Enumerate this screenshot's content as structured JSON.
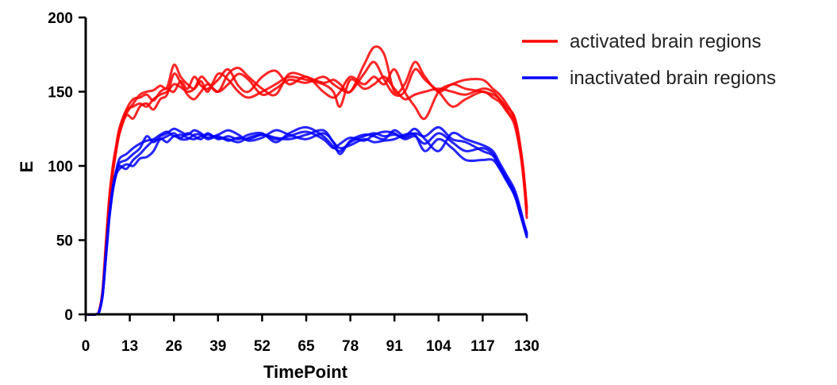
{
  "chart_data": {
    "type": "line",
    "xlabel": "TimePoint",
    "ylabel": "E",
    "xlim": [
      0,
      130
    ],
    "ylim": [
      0,
      200
    ],
    "xticks": [
      0,
      13,
      26,
      39,
      52,
      65,
      78,
      91,
      104,
      117,
      130
    ],
    "yticks": [
      0,
      50,
      100,
      150,
      200
    ],
    "grid": false,
    "legend_position": "top-right",
    "legend": [
      {
        "label": "activated brain regions",
        "color": "#ff0000"
      },
      {
        "label": "inactivated brain regions",
        "color": "#0000ff"
      }
    ],
    "x": [
      0,
      3,
      4,
      5,
      6,
      7,
      8,
      9,
      10,
      12,
      14,
      16,
      18,
      20,
      22,
      24,
      26,
      28,
      30,
      32,
      34,
      36,
      39,
      42,
      45,
      48,
      52,
      56,
      60,
      65,
      70,
      73,
      75,
      78,
      82,
      85,
      88,
      91,
      94,
      97,
      100,
      104,
      108,
      112,
      117,
      120,
      122,
      124,
      126,
      127,
      128,
      129,
      130
    ],
    "series": [
      {
        "color": "#ff0000",
        "values": [
          0,
          0,
          2,
          15,
          45,
          75,
          95,
          110,
          122,
          135,
          142,
          148,
          150,
          151,
          154,
          153,
          168,
          160,
          155,
          152,
          157,
          150,
          162,
          158,
          150,
          146,
          150,
          155,
          160,
          158,
          155,
          150,
          140,
          158,
          152,
          155,
          160,
          152,
          145,
          148,
          150,
          152,
          150,
          148,
          152,
          150,
          145,
          140,
          135,
          128,
          115,
          95,
          65
        ]
      },
      {
        "color": "#ff0000",
        "values": [
          0,
          0,
          2,
          16,
          48,
          78,
          98,
          112,
          124,
          137,
          140,
          142,
          140,
          145,
          148,
          150,
          155,
          153,
          150,
          152,
          160,
          156,
          150,
          162,
          166,
          160,
          152,
          148,
          162,
          160,
          156,
          158,
          155,
          150,
          168,
          180,
          175,
          150,
          155,
          170,
          160,
          150,
          155,
          152,
          150,
          148,
          145,
          138,
          132,
          126,
          112,
          96,
          70
        ]
      },
      {
        "color": "#ff0000",
        "values": [
          0,
          0,
          3,
          17,
          50,
          80,
          100,
          114,
          126,
          138,
          145,
          146,
          148,
          144,
          150,
          152,
          150,
          157,
          152,
          160,
          154,
          152,
          158,
          165,
          154,
          150,
          160,
          164,
          155,
          160,
          150,
          146,
          150,
          160,
          155,
          160,
          155,
          165,
          150,
          140,
          132,
          150,
          155,
          158,
          158,
          152,
          148,
          142,
          134,
          125,
          114,
          98,
          72
        ]
      },
      {
        "color": "#ff0000",
        "values": [
          0,
          0,
          2,
          15,
          46,
          76,
          96,
          111,
          123,
          134,
          132,
          140,
          142,
          138,
          145,
          148,
          162,
          156,
          148,
          145,
          150,
          155,
          150,
          155,
          162,
          158,
          148,
          152,
          158,
          156,
          160,
          155,
          152,
          150,
          162,
          170,
          158,
          148,
          150,
          165,
          158,
          150,
          140,
          145,
          150,
          146,
          143,
          137,
          130,
          122,
          110,
          92,
          68
        ]
      },
      {
        "color": "#0000ff",
        "values": [
          0,
          0,
          2,
          14,
          42,
          68,
          86,
          97,
          105,
          108,
          112,
          115,
          117,
          118,
          121,
          123,
          120,
          121,
          119,
          118,
          120,
          121,
          119,
          118,
          116,
          119,
          121,
          118,
          120,
          123,
          118,
          112,
          115,
          119,
          117,
          121,
          123,
          122,
          118,
          120,
          115,
          122,
          116,
          110,
          112,
          108,
          100,
          92,
          84,
          78,
          70,
          62,
          54
        ]
      },
      {
        "color": "#0000ff",
        "values": [
          0,
          0,
          2,
          13,
          40,
          66,
          84,
          95,
          102,
          104,
          108,
          112,
          120,
          116,
          120,
          122,
          125,
          123,
          121,
          124,
          122,
          119,
          121,
          124,
          121,
          117,
          119,
          124,
          121,
          118,
          122,
          116,
          108,
          117,
          121,
          120,
          118,
          124,
          120,
          125,
          118,
          110,
          122,
          118,
          114,
          110,
          102,
          94,
          86,
          80,
          72,
          63,
          55
        ]
      },
      {
        "color": "#0000ff",
        "values": [
          0,
          0,
          2,
          14,
          41,
          67,
          85,
          96,
          100,
          98,
          104,
          108,
          113,
          117,
          118,
          120,
          122,
          119,
          122,
          120,
          118,
          122,
          118,
          120,
          118,
          121,
          122,
          116,
          122,
          126,
          120,
          113,
          110,
          116,
          120,
          122,
          120,
          121,
          119,
          122,
          120,
          126,
          118,
          116,
          110,
          107,
          99,
          91,
          83,
          77,
          69,
          61,
          53
        ]
      },
      {
        "color": "#0000ff",
        "values": [
          0,
          0,
          2,
          13,
          39,
          65,
          83,
          94,
          98,
          101,
          100,
          105,
          106,
          110,
          118,
          116,
          120,
          118,
          118,
          121,
          121,
          118,
          120,
          117,
          119,
          118,
          121,
          119,
          118,
          121,
          124,
          116,
          112,
          114,
          118,
          116,
          117,
          118,
          121,
          121,
          110,
          118,
          112,
          104,
          104,
          104,
          98,
          90,
          82,
          76,
          68,
          60,
          52
        ]
      }
    ]
  }
}
